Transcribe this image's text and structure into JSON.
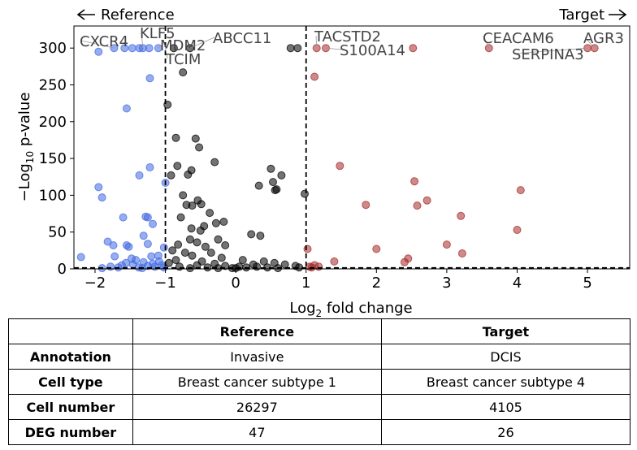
{
  "chart_data": {
    "type": "scatter",
    "xlabel": "Log",
    "xlabel_sub": "2",
    "xlabel_tail": " fold change",
    "ylabel": "−Log",
    "ylabel_sub": "10",
    "ylabel_tail": " p-value",
    "xlim": [
      -2.3,
      5.6
    ],
    "ylim": [
      0,
      330
    ],
    "x_ticks": [
      -2,
      -1,
      0,
      1,
      2,
      3,
      4,
      5
    ],
    "y_ticks": [
      0,
      50,
      100,
      150,
      200,
      250,
      300
    ],
    "grid": false,
    "thresholds": {
      "log2fc": [
        -1,
        1
      ],
      "neg_log10_p": 1.3
    },
    "direction_left": "Reference",
    "direction_right": "Target",
    "colors": {
      "down": "#4169E1",
      "up": "#A52A2A",
      "ns": "#000000",
      "label": "#444444"
    },
    "series": [
      {
        "group": "down",
        "points": [
          [
            -1.95,
            295
          ],
          [
            -1.73,
            300
          ],
          [
            -1.58,
            300
          ],
          [
            -1.47,
            300
          ],
          [
            -1.37,
            300
          ],
          [
            -1.32,
            300
          ],
          [
            -1.23,
            300
          ],
          [
            -1.1,
            300
          ],
          [
            -1.22,
            259
          ],
          [
            -1.55,
            218
          ],
          [
            -1.22,
            138
          ],
          [
            -1.37,
            127
          ],
          [
            -1.0,
            117
          ],
          [
            -1.95,
            111
          ],
          [
            -1.9,
            97
          ],
          [
            -1.28,
            71
          ],
          [
            -1.25,
            70
          ],
          [
            -1.6,
            70
          ],
          [
            -1.18,
            61
          ],
          [
            -1.31,
            45
          ],
          [
            -1.82,
            37
          ],
          [
            -1.25,
            34
          ],
          [
            -1.74,
            32
          ],
          [
            -1.55,
            32
          ],
          [
            -1.52,
            30
          ],
          [
            -1.02,
            29
          ],
          [
            -2.2,
            16
          ],
          [
            -1.2,
            17
          ],
          [
            -1.48,
            14
          ],
          [
            -1.72,
            17
          ],
          [
            -1.1,
            18
          ],
          [
            -1.42,
            12
          ],
          [
            -1.56,
            8
          ],
          [
            -1.31,
            9
          ],
          [
            -1.18,
            7
          ],
          [
            -1.09,
            10
          ],
          [
            -1.62,
            5
          ],
          [
            -1.46,
            6
          ],
          [
            -1.25,
            4
          ],
          [
            -1.05,
            5
          ],
          [
            -1.78,
            3
          ],
          [
            -1.38,
            2
          ],
          [
            -1.15,
            3
          ],
          [
            -1.67,
            2
          ],
          [
            -1.02,
            2
          ],
          [
            -1.33,
            1
          ],
          [
            -1.9,
            1
          ]
        ]
      },
      {
        "group": "up",
        "points": [
          [
            1.15,
            300
          ],
          [
            1.28,
            300
          ],
          [
            2.52,
            300
          ],
          [
            3.6,
            300
          ],
          [
            5.0,
            300
          ],
          [
            5.1,
            300
          ],
          [
            1.12,
            261
          ],
          [
            1.48,
            140
          ],
          [
            2.54,
            119
          ],
          [
            4.05,
            107
          ],
          [
            2.72,
            93
          ],
          [
            1.85,
            87
          ],
          [
            2.58,
            86
          ],
          [
            3.2,
            72
          ],
          [
            4.0,
            53
          ],
          [
            3.0,
            33
          ],
          [
            2.0,
            27
          ],
          [
            1.02,
            27
          ],
          [
            3.22,
            21
          ],
          [
            2.45,
            14
          ],
          [
            1.4,
            10
          ],
          [
            2.4,
            9
          ],
          [
            1.12,
            5
          ],
          [
            1.05,
            3
          ],
          [
            1.18,
            3
          ],
          [
            1.08,
            2
          ]
        ]
      },
      {
        "group": "ns",
        "points": [
          [
            -0.65,
            300
          ],
          [
            -0.88,
            300
          ],
          [
            0.78,
            300
          ],
          [
            0.88,
            300
          ],
          [
            -0.75,
            267
          ],
          [
            -0.97,
            223
          ],
          [
            -0.85,
            178
          ],
          [
            -0.57,
            177
          ],
          [
            -0.52,
            165
          ],
          [
            -0.3,
            145
          ],
          [
            -0.63,
            134
          ],
          [
            -0.83,
            140
          ],
          [
            -0.68,
            128
          ],
          [
            -0.92,
            127
          ],
          [
            0.5,
            136
          ],
          [
            0.53,
            118
          ],
          [
            0.65,
            127
          ],
          [
            0.33,
            113
          ],
          [
            0.56,
            107
          ],
          [
            0.58,
            108
          ],
          [
            0.98,
            102
          ],
          [
            -0.75,
            100
          ],
          [
            -0.54,
            93
          ],
          [
            -0.7,
            87
          ],
          [
            -0.62,
            86
          ],
          [
            -0.49,
            88
          ],
          [
            -0.78,
            70
          ],
          [
            -0.37,
            76
          ],
          [
            -0.45,
            58
          ],
          [
            -0.28,
            62
          ],
          [
            -0.5,
            52
          ],
          [
            -0.17,
            64
          ],
          [
            -0.63,
            55
          ],
          [
            0.22,
            47
          ],
          [
            0.35,
            45
          ],
          [
            -0.65,
            40
          ],
          [
            -0.25,
            40
          ],
          [
            -0.55,
            36
          ],
          [
            -0.82,
            33
          ],
          [
            -0.43,
            30
          ],
          [
            -0.15,
            32
          ],
          [
            -0.9,
            25
          ],
          [
            -0.72,
            22
          ],
          [
            -0.35,
            22
          ],
          [
            -0.62,
            18
          ],
          [
            -0.2,
            15
          ],
          [
            0.1,
            12
          ],
          [
            -0.85,
            12
          ],
          [
            -0.48,
            10
          ],
          [
            0.4,
            10
          ],
          [
            0.55,
            8
          ],
          [
            -0.3,
            7
          ],
          [
            0.25,
            6
          ],
          [
            0.7,
            6
          ],
          [
            -0.95,
            8
          ],
          [
            -0.55,
            5
          ],
          [
            -0.15,
            4
          ],
          [
            0.05,
            3
          ],
          [
            0.3,
            3
          ],
          [
            0.85,
            4
          ],
          [
            -0.8,
            3
          ],
          [
            -0.4,
            2
          ],
          [
            0.15,
            2
          ],
          [
            0.45,
            2
          ],
          [
            -0.65,
            1
          ],
          [
            -0.25,
            1
          ],
          [
            0.0,
            1
          ],
          [
            0.6,
            1
          ],
          [
            0.9,
            2
          ],
          [
            -0.05,
            1
          ]
        ]
      }
    ],
    "annotations": [
      {
        "label": "CXCR4",
        "x": -1.73,
        "y": 300
      },
      {
        "label": "KLF5",
        "x": -1.32,
        "y": 300
      },
      {
        "label": "MDM2",
        "x": -1.1,
        "y": 300
      },
      {
        "label": "TCIM",
        "x": -1.0,
        "y": 300
      },
      {
        "label": "ABCC11",
        "x": -0.65,
        "y": 300
      },
      {
        "label": "TACSTD2",
        "x": 1.15,
        "y": 300
      },
      {
        "label": "S100A14",
        "x": 1.28,
        "y": 300
      },
      {
        "label": "CEACAM6",
        "x": 3.6,
        "y": 300
      },
      {
        "label": "SERPINA3",
        "x": 5.0,
        "y": 300
      },
      {
        "label": "AGR3",
        "x": 5.1,
        "y": 300
      }
    ]
  },
  "table": {
    "headers": [
      "",
      "Reference",
      "Target"
    ],
    "rows": [
      [
        "Annotation",
        "Invasive",
        "DCIS"
      ],
      [
        "Cell type",
        "Breast cancer subtype 1",
        "Breast cancer subtype 4"
      ],
      [
        "Cell number",
        "26297",
        "4105"
      ],
      [
        "DEG number",
        "47",
        "26"
      ]
    ]
  }
}
